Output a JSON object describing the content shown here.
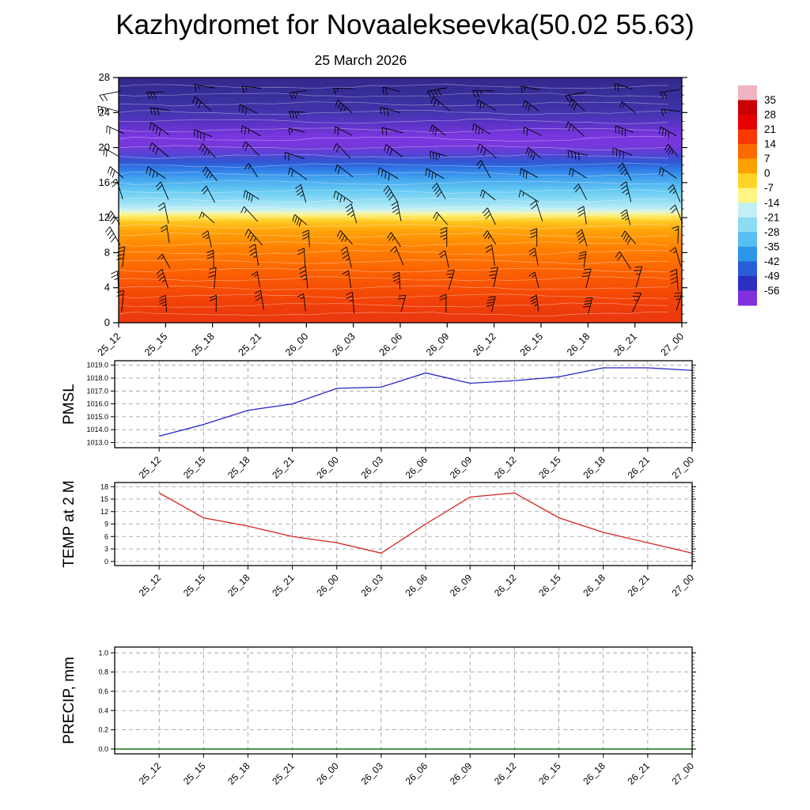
{
  "title": "Kazhydromet for Novaalekseevka(50.02 55.63)",
  "colors": {
    "grid": "#999999",
    "pmsl_line": "#2424c8",
    "temp2m_line": "#d82020",
    "precip_line": "#006400",
    "axis": "#000000"
  },
  "time_labels": [
    "25_12",
    "25_15",
    "25_18",
    "25_21",
    "26_00",
    "26_03",
    "26_06",
    "26_09",
    "26_12",
    "26_15",
    "26_18",
    "26_21",
    "27_00"
  ],
  "chart_data": [
    {
      "type": "heatmap",
      "id": "cross_section",
      "title": "25 March 2026",
      "description": "vertical temperature cross-section with wind barbs",
      "ylim": [
        0,
        28
      ],
      "yticks": [
        0,
        4,
        8,
        12,
        16,
        20,
        24,
        28
      ],
      "x_categories": [
        "25_12",
        "25_15",
        "25_18",
        "25_21",
        "26_00",
        "26_03",
        "26_06",
        "26_09",
        "26_12",
        "26_15",
        "26_18",
        "26_21",
        "27_00"
      ],
      "overlays": [
        "wind-barbs",
        "temperature-contours"
      ],
      "colorbar": {
        "tick_labels": [
          "35",
          "28",
          "21",
          "14",
          "7",
          "0",
          "-7",
          "-14",
          "-21",
          "-28",
          "-35",
          "-42",
          "-49",
          "-56"
        ],
        "segment_colors": [
          "#f0b4c0",
          "#c80000",
          "#e60000",
          "#f83800",
          "#fd6a00",
          "#ffa000",
          "#ffd428",
          "#fff484",
          "#c2eef4",
          "#8cdcf4",
          "#56bef0",
          "#2e96e8",
          "#2a5ed8",
          "#2b2fc2",
          "#8030dc"
        ]
      },
      "gradient_stops": [
        {
          "pos": 0.0,
          "color": "#33298c"
        },
        {
          "pos": 0.08,
          "color": "#392f9c"
        },
        {
          "pos": 0.14,
          "color": "#4134ac"
        },
        {
          "pos": 0.19,
          "color": "#5c33c6"
        },
        {
          "pos": 0.24,
          "color": "#7a36e0"
        },
        {
          "pos": 0.285,
          "color": "#7438da"
        },
        {
          "pos": 0.315,
          "color": "#4f46d4"
        },
        {
          "pos": 0.345,
          "color": "#2f57d2"
        },
        {
          "pos": 0.375,
          "color": "#2f7ce6"
        },
        {
          "pos": 0.41,
          "color": "#41a2ee"
        },
        {
          "pos": 0.46,
          "color": "#65c9f3"
        },
        {
          "pos": 0.5,
          "color": "#8edbf5"
        },
        {
          "pos": 0.535,
          "color": "#bdeef6"
        },
        {
          "pos": 0.552,
          "color": "#f0f6c0"
        },
        {
          "pos": 0.567,
          "color": "#ffe95a"
        },
        {
          "pos": 0.59,
          "color": "#ffc41e"
        },
        {
          "pos": 0.625,
          "color": "#ffa30a"
        },
        {
          "pos": 0.7,
          "color": "#ff7f00"
        },
        {
          "pos": 0.79,
          "color": "#fb6203"
        },
        {
          "pos": 0.875,
          "color": "#f54a06"
        },
        {
          "pos": 0.95,
          "color": "#ee3b0b"
        },
        {
          "pos": 1.0,
          "color": "#ea3a10"
        }
      ]
    },
    {
      "type": "line",
      "id": "pmsl",
      "ylabel": "PMSL",
      "ylim": [
        1012.6,
        1019.35
      ],
      "yticks": [
        "1013.0",
        "1014.0",
        "1015.0",
        "1016.0",
        "1017.0",
        "1018.0",
        "1019.0"
      ],
      "x": [
        "25_12",
        "25_15",
        "25_18",
        "25_21",
        "26_00",
        "26_03",
        "26_06",
        "26_09",
        "26_12",
        "26_15",
        "26_18",
        "26_21",
        "27_00"
      ],
      "values": [
        1013.5,
        1014.4,
        1015.5,
        1016.0,
        1017.2,
        1017.3,
        1018.4,
        1017.6,
        1017.8,
        1018.1,
        1018.8,
        1018.8,
        1018.6
      ]
    },
    {
      "type": "line",
      "id": "temp2m",
      "ylabel": "TEMP at 2 M",
      "ylim": [
        -1,
        19
      ],
      "yticks": [
        "0",
        "3",
        "6",
        "9",
        "12",
        "15",
        "18"
      ],
      "x": [
        "25_12",
        "25_15",
        "25_18",
        "25_21",
        "26_00",
        "26_03",
        "26_06",
        "26_09",
        "26_12",
        "26_15",
        "26_18",
        "26_21",
        "27_00"
      ],
      "values": [
        16.5,
        10.5,
        8.5,
        6.0,
        4.5,
        2.0,
        9.0,
        15.5,
        16.5,
        10.5,
        7.0,
        4.5,
        2.0
      ]
    },
    {
      "type": "line",
      "id": "precip",
      "ylabel": "PRECIP, mm",
      "ylim": [
        -0.05,
        1.06
      ],
      "yticks": [
        "0.0",
        "0.2",
        "0.4",
        "0.6",
        "0.8",
        "1.0"
      ],
      "x": [
        "25_12",
        "25_15",
        "25_18",
        "25_21",
        "26_00",
        "26_03",
        "26_06",
        "26_09",
        "26_12",
        "26_15",
        "26_18",
        "26_21",
        "27_00"
      ],
      "values": [
        0,
        0,
        0,
        0,
        0,
        0,
        0,
        0,
        0,
        0,
        0,
        0,
        0
      ]
    }
  ]
}
